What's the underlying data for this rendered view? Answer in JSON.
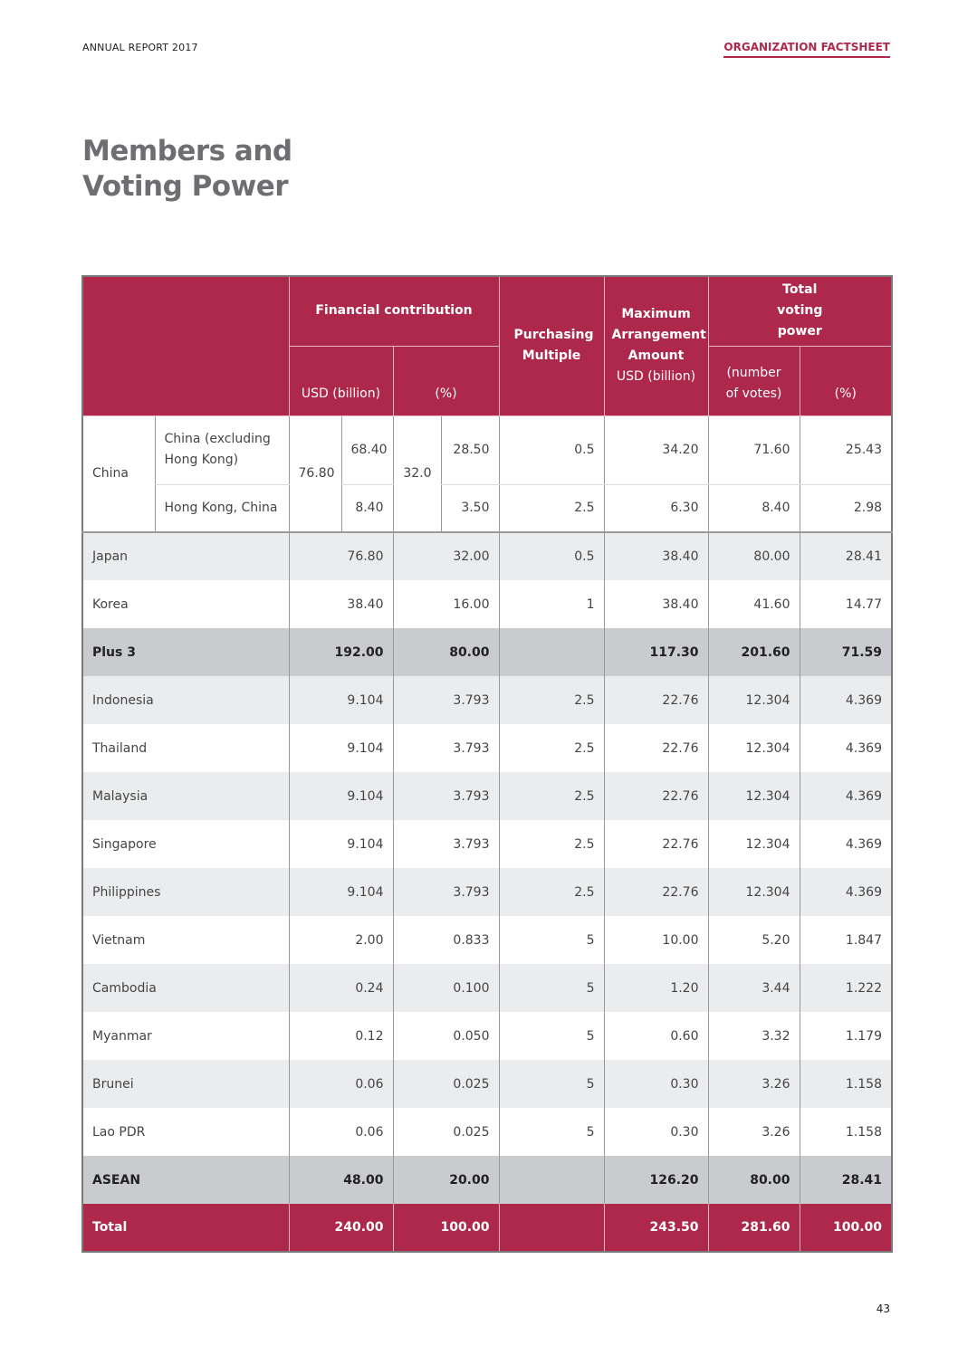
{
  "header": {
    "left": "ANNUAL REPORT 2017",
    "right": "ORGANIZATION FACTSHEET"
  },
  "title": {
    "line1": "Members and",
    "line2": "Voting Power"
  },
  "table": {
    "headers": {
      "financial": "Financial contribution",
      "usd": "USD (billion)",
      "pct": "(%)",
      "purchasing": "Purchasing Multiple",
      "max_line1": "Maximum Arrangement Amount",
      "max_line2": "USD (billion)",
      "voting": "Total voting power",
      "votes": "(number of votes)",
      "vpct": "(%)"
    },
    "china": {
      "label": "China",
      "usd_total": "76.80",
      "pct_total": "32.0",
      "rows": [
        {
          "name": "China (excluding Hong Kong)",
          "usd": "68.40",
          "pct": "28.50",
          "multiple": "0.5",
          "max": "34.20",
          "votes": "71.60",
          "vpct": "25.43"
        },
        {
          "name": "Hong Kong, China",
          "usd": "8.40",
          "pct": "3.50",
          "multiple": "2.5",
          "max": "6.30",
          "votes": "8.40",
          "vpct": "2.98"
        }
      ]
    },
    "rows": [
      {
        "name": "Japan",
        "usd": "76.80",
        "pct": "32.00",
        "multiple": "0.5",
        "max": "38.40",
        "votes": "80.00",
        "vpct": "28.41",
        "style": "gray"
      },
      {
        "name": "Korea",
        "usd": "38.40",
        "pct": "16.00",
        "multiple": "1",
        "max": "38.40",
        "votes": "41.60",
        "vpct": "14.77",
        "style": "white"
      },
      {
        "name": "Plus 3",
        "usd": "192.00",
        "pct": "80.00",
        "multiple": "",
        "max": "117.30",
        "votes": "201.60",
        "vpct": "71.59",
        "style": "sub"
      },
      {
        "name": "Indonesia",
        "usd": "9.104",
        "pct": "3.793",
        "multiple": "2.5",
        "max": "22.76",
        "votes": "12.304",
        "vpct": "4.369",
        "style": "gray"
      },
      {
        "name": "Thailand",
        "usd": "9.104",
        "pct": "3.793",
        "multiple": "2.5",
        "max": "22.76",
        "votes": "12.304",
        "vpct": "4.369",
        "style": "white"
      },
      {
        "name": "Malaysia",
        "usd": "9.104",
        "pct": "3.793",
        "multiple": "2.5",
        "max": "22.76",
        "votes": "12.304",
        "vpct": "4.369",
        "style": "gray"
      },
      {
        "name": "Singapore",
        "usd": "9.104",
        "pct": "3.793",
        "multiple": "2.5",
        "max": "22.76",
        "votes": "12.304",
        "vpct": "4.369",
        "style": "white"
      },
      {
        "name": "Philippines",
        "usd": "9.104",
        "pct": "3.793",
        "multiple": "2.5",
        "max": "22.76",
        "votes": "12.304",
        "vpct": "4.369",
        "style": "gray"
      },
      {
        "name": "Vietnam",
        "usd": "2.00",
        "pct": "0.833",
        "multiple": "5",
        "max": "10.00",
        "votes": "5.20",
        "vpct": "1.847",
        "style": "white"
      },
      {
        "name": "Cambodia",
        "usd": "0.24",
        "pct": "0.100",
        "multiple": "5",
        "max": "1.20",
        "votes": "3.44",
        "vpct": "1.222",
        "style": "gray"
      },
      {
        "name": "Myanmar",
        "usd": "0.12",
        "pct": "0.050",
        "multiple": "5",
        "max": "0.60",
        "votes": "3.32",
        "vpct": "1.179",
        "style": "white"
      },
      {
        "name": "Brunei",
        "usd": "0.06",
        "pct": "0.025",
        "multiple": "5",
        "max": "0.30",
        "votes": "3.26",
        "vpct": "1.158",
        "style": "gray"
      },
      {
        "name": "Lao PDR",
        "usd": "0.06",
        "pct": "0.025",
        "multiple": "5",
        "max": "0.30",
        "votes": "3.26",
        "vpct": "1.158",
        "style": "white"
      },
      {
        "name": "ASEAN",
        "usd": "48.00",
        "pct": "20.00",
        "multiple": "",
        "max": "126.20",
        "votes": "80.00",
        "vpct": "28.41",
        "style": "sub"
      },
      {
        "name": "Total",
        "usd": "240.00",
        "pct": "100.00",
        "multiple": "",
        "max": "243.50",
        "votes": "281.60",
        "vpct": "100.00",
        "style": "total"
      }
    ]
  },
  "page_number": "43",
  "colors": {
    "accent": "#ae284c",
    "title": "#6d6e71",
    "row_gray": "#ebecee",
    "subtotal": "#c9cbce"
  }
}
